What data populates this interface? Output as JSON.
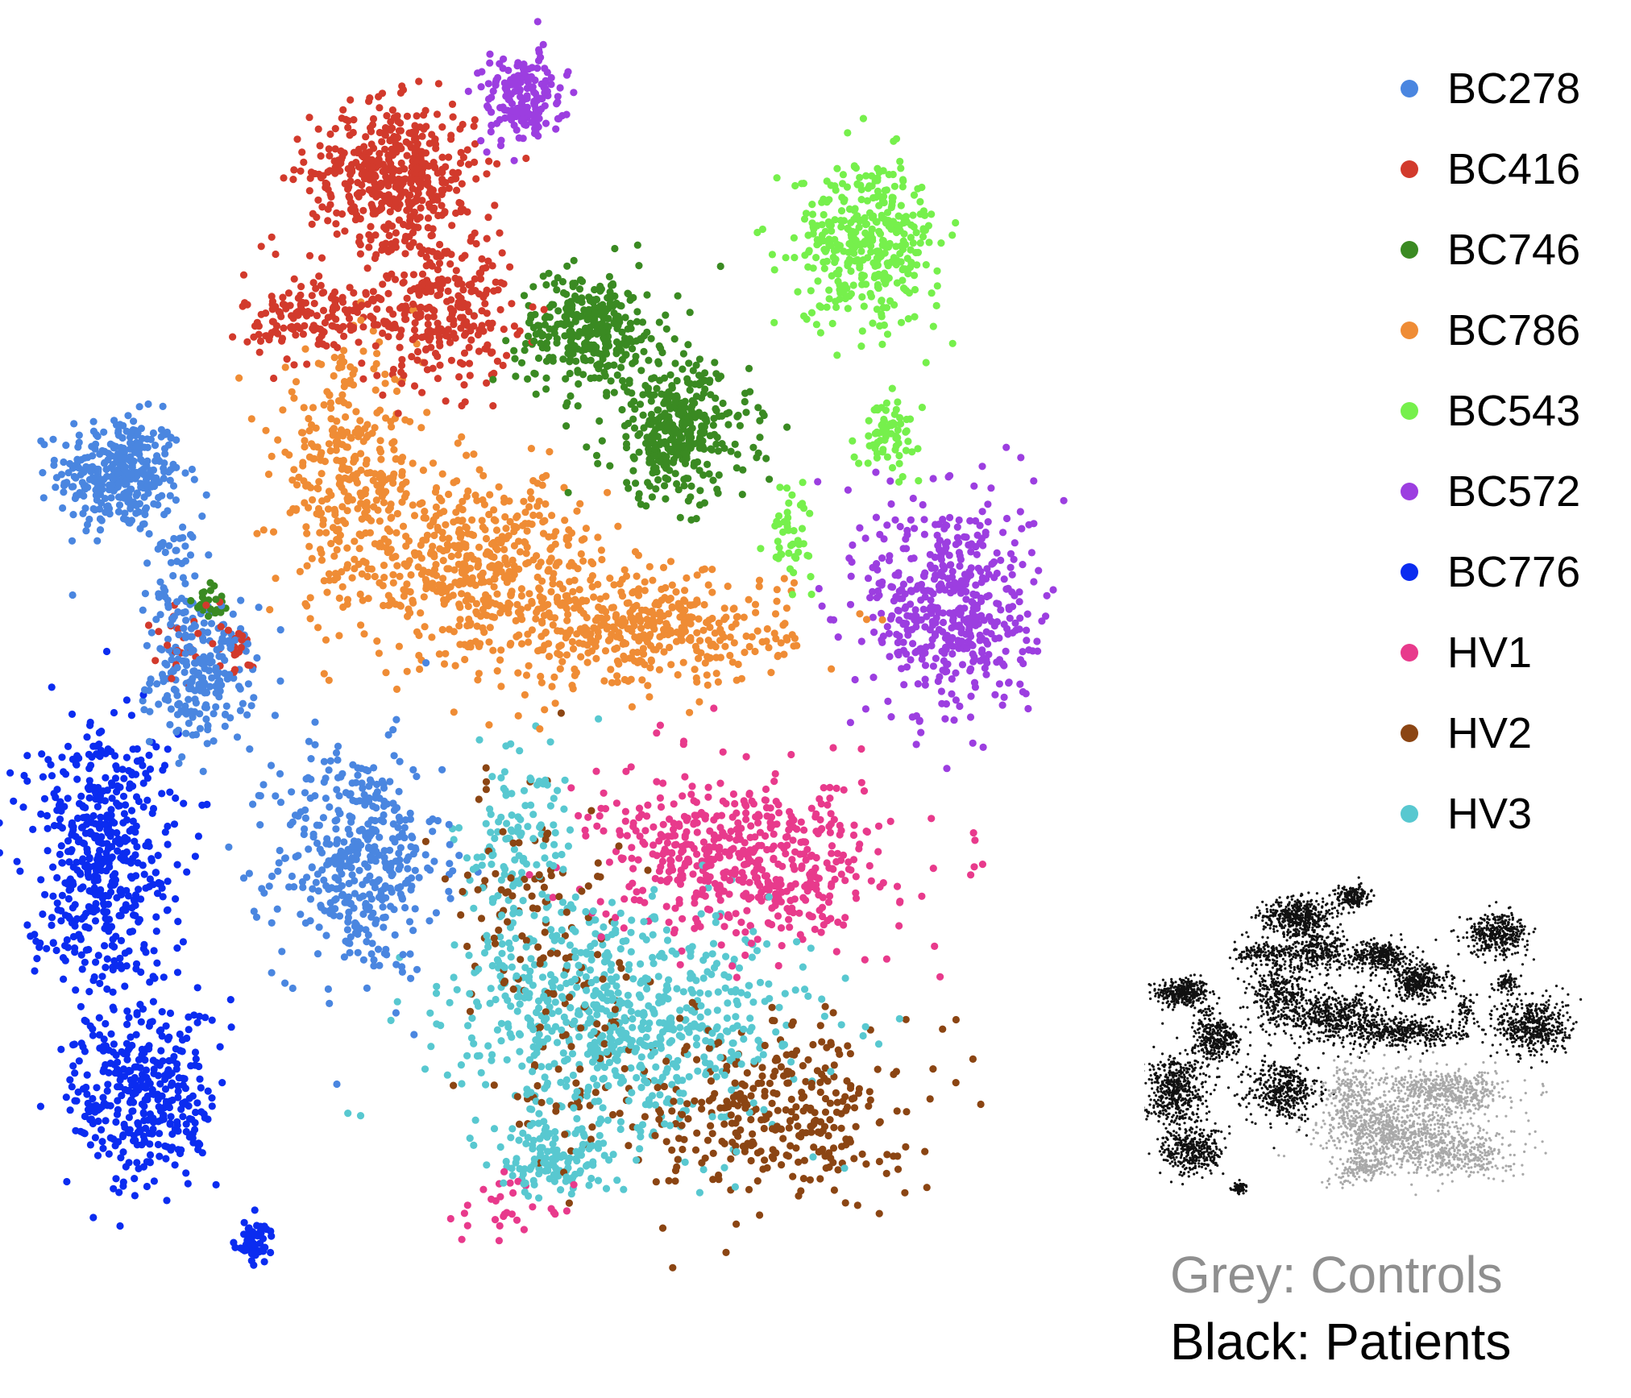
{
  "chart_data": {
    "type": "scatter",
    "title": "",
    "xlabel": "",
    "ylabel": "",
    "grid": false,
    "legend_position": "top-right",
    "series": [
      {
        "name": "BC278",
        "color": "#4a86e0",
        "clusters": [
          {
            "center": [
              -86,
              55
            ],
            "spread": [
              6,
              5
            ],
            "n": 340
          },
          {
            "center": [
              -76,
              36
            ],
            "spread": [
              3,
              6
            ],
            "n": 60
          },
          {
            "center": [
              -70,
              20
            ],
            "spread": [
              5,
              6
            ],
            "n": 220
          },
          {
            "center": [
              -40,
              -12
            ],
            "spread": [
              8,
              10
            ],
            "n": 430
          }
        ]
      },
      {
        "name": "BC416",
        "color": "#d23a2c",
        "clusters": [
          {
            "center": [
              -33,
              107
            ],
            "spread": [
              8,
              6
            ],
            "n": 480
          },
          {
            "center": [
              -24,
              84
            ],
            "spread": [
              7,
              7
            ],
            "n": 290
          },
          {
            "center": [
              -48,
              82
            ],
            "spread": [
              7,
              4
            ],
            "n": 160
          },
          {
            "center": [
              -73,
              27
            ],
            "spread": [
              4,
              3
            ],
            "n": 25
          },
          {
            "center": [
              -63,
              24
            ],
            "spread": [
              2,
              2
            ],
            "n": 18
          }
        ]
      },
      {
        "name": "BC746",
        "color": "#3a8a22",
        "clusters": [
          {
            "center": [
              5,
              80
            ],
            "spread": [
              7,
              5
            ],
            "n": 320
          },
          {
            "center": [
              22,
              62
            ],
            "spread": [
              7,
              6
            ],
            "n": 360
          },
          {
            "center": [
              -68,
              33
            ],
            "spread": [
              2,
              2
            ],
            "n": 24
          }
        ]
      },
      {
        "name": "BC786",
        "color": "#ef8c35",
        "clusters": [
          {
            "center": [
              -42,
              55
            ],
            "spread": [
              7,
              10
            ],
            "n": 320
          },
          {
            "center": [
              -17,
              39
            ],
            "spread": [
              12,
              8
            ],
            "n": 520
          },
          {
            "center": [
              16,
              28
            ],
            "spread": [
              14,
              5
            ],
            "n": 420
          }
        ]
      },
      {
        "name": "BC543",
        "color": "#76f04c",
        "clusters": [
          {
            "center": [
              59,
              95
            ],
            "spread": [
              7,
              7
            ],
            "n": 380
          },
          {
            "center": [
              63,
              62
            ],
            "spread": [
              3,
              3
            ],
            "n": 70
          },
          {
            "center": [
              44,
              45
            ],
            "spread": [
              2,
              4
            ],
            "n": 45
          }
        ]
      },
      {
        "name": "BC572",
        "color": "#9c3ee0",
        "clusters": [
          {
            "center": [
              -8,
              120
            ],
            "spread": [
              4,
              4
            ],
            "n": 170
          },
          {
            "center": [
              75,
              32
            ],
            "spread": [
              8,
              10
            ],
            "n": 500
          }
        ]
      },
      {
        "name": "BC776",
        "color": "#0b2cf0",
        "clusters": [
          {
            "center": [
              -90,
              -11
            ],
            "spread": [
              7,
              12
            ],
            "n": 520
          },
          {
            "center": [
              -81,
              -53
            ],
            "spread": [
              7,
              8
            ],
            "n": 360
          },
          {
            "center": [
              -60,
              -78
            ],
            "spread": [
              2,
              2
            ],
            "n": 55
          }
        ]
      },
      {
        "name": "HV1",
        "color": "#e83a8c",
        "clusters": [
          {
            "center": [
              35,
              -12
            ],
            "spread": [
              14,
              7
            ],
            "n": 560
          },
          {
            "center": [
              -10,
              -72
            ],
            "spread": [
              6,
              3
            ],
            "n": 30
          }
        ]
      },
      {
        "name": "HV2",
        "color": "#8b4513",
        "clusters": [
          {
            "center": [
              42,
              -55
            ],
            "spread": [
              12,
              8
            ],
            "n": 330
          },
          {
            "center": [
              -7,
              -18
            ],
            "spread": [
              7,
              10
            ],
            "n": 90
          },
          {
            "center": [
              4,
              -45
            ],
            "spread": [
              9,
              12
            ],
            "n": 90
          }
        ]
      },
      {
        "name": "HV3",
        "color": "#58c8d0",
        "clusters": [
          {
            "center": [
              13,
              -40
            ],
            "spread": [
              17,
              10
            ],
            "n": 720
          },
          {
            "center": [
              -10,
              -12
            ],
            "spread": [
              6,
              10
            ],
            "n": 150
          },
          {
            "center": [
              -2,
              -64
            ],
            "spread": [
              6,
              3
            ],
            "n": 120
          }
        ]
      }
    ],
    "inset": {
      "controls_color": "#a9a9a9",
      "patients_color": "#111111",
      "control_series": [
        "HV1",
        "HV2",
        "HV3"
      ]
    }
  },
  "legend_items": [
    "BC278",
    "BC416",
    "BC746",
    "BC786",
    "BC543",
    "BC572",
    "BC776",
    "HV1",
    "HV2",
    "HV3"
  ],
  "caption": {
    "grey": "Grey: Controls",
    "black": "Black: Patients"
  }
}
